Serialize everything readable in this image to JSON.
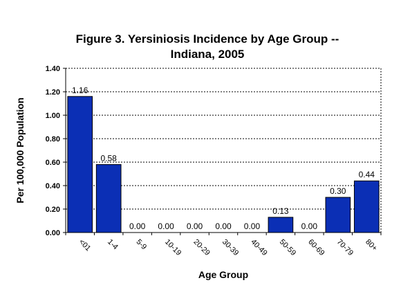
{
  "chart_data": {
    "type": "bar",
    "title_line1": "Figure 3.  Yersiniosis Incidence by Age Group --",
    "title_line2": "Indiana, 2005",
    "xlabel": "Age Group",
    "ylabel": "Per 100,000 Population",
    "categories": [
      "<01",
      "1-4",
      "5-9",
      "10-19",
      "20-29",
      "30-39",
      "40-49",
      "50-59",
      "60-69",
      "70-79",
      "80+"
    ],
    "values": [
      1.16,
      0.58,
      0.0,
      0.0,
      0.0,
      0.0,
      0.0,
      0.13,
      0.0,
      0.3,
      0.44
    ],
    "value_labels": [
      "1.16",
      "0.58",
      "0.00",
      "0.00",
      "0.00",
      "0.00",
      "0.00",
      "0.13",
      "0.00",
      "0.30",
      "0.44"
    ],
    "y_ticks": [
      "0.00",
      "0.20",
      "0.40",
      "0.60",
      "0.80",
      "1.00",
      "1.20",
      "1.40"
    ],
    "ylim": [
      0,
      1.4
    ],
    "grid": "dotted horizontal",
    "legend": "none",
    "bar_color": "#0b2fb5"
  }
}
